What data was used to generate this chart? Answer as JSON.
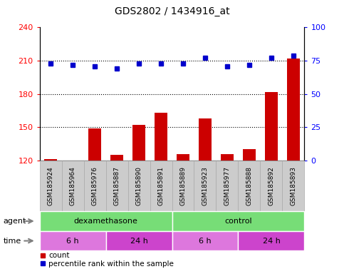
{
  "title": "GDS2802 / 1434916_at",
  "samples": [
    "GSM185924",
    "GSM185964",
    "GSM185976",
    "GSM185887",
    "GSM185890",
    "GSM185891",
    "GSM185889",
    "GSM185923",
    "GSM185977",
    "GSM185888",
    "GSM185892",
    "GSM185893"
  ],
  "counts": [
    121,
    120,
    149,
    125,
    152,
    163,
    126,
    158,
    126,
    130,
    182,
    212
  ],
  "percentile_ranks": [
    73,
    72,
    71,
    69,
    73,
    73,
    73,
    77,
    71,
    72,
    77,
    79
  ],
  "ylim_left": [
    120,
    240
  ],
  "ylim_right": [
    0,
    100
  ],
  "yticks_left": [
    120,
    150,
    180,
    210,
    240
  ],
  "yticks_right": [
    0,
    25,
    50,
    75,
    100
  ],
  "hlines": [
    150,
    180,
    210
  ],
  "bar_color": "#cc0000",
  "dot_color": "#0000cc",
  "bar_bottom": 120,
  "agent_groups": [
    {
      "label": "dexamethasone",
      "start": 0,
      "end": 6,
      "color": "#77dd77"
    },
    {
      "label": "control",
      "start": 6,
      "end": 12,
      "color": "#77dd77"
    }
  ],
  "time_groups": [
    {
      "label": "6 h",
      "start": 0,
      "end": 3,
      "color": "#dd77dd"
    },
    {
      "label": "24 h",
      "start": 3,
      "end": 6,
      "color": "#cc44cc"
    },
    {
      "label": "6 h",
      "start": 6,
      "end": 9,
      "color": "#dd77dd"
    },
    {
      "label": "24 h",
      "start": 9,
      "end": 12,
      "color": "#cc44cc"
    }
  ],
  "legend_items": [
    {
      "label": "count",
      "color": "#cc0000"
    },
    {
      "label": "percentile rank within the sample",
      "color": "#0000cc"
    }
  ],
  "background_color": "#ffffff",
  "plot_bg": "#ffffff",
  "agent_label": "agent",
  "time_label": "time",
  "tick_box_color": "#cccccc",
  "tick_box_edge": "#aaaaaa"
}
